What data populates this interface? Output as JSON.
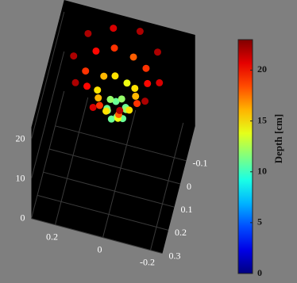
{
  "chart_data": {
    "type": "scatter3d",
    "x": [
      0.07,
      0.062,
      0.042,
      0.018,
      -0.002,
      -0.01,
      -0.002,
      0.018,
      0.042,
      0.062,
      0.11,
      0.095,
      0.055,
      0.005,
      -0.035,
      -0.05,
      -0.035,
      0.005,
      0.055,
      0.095,
      0.16,
      0.135,
      0.07,
      -0.01,
      -0.075,
      -0.1,
      -0.075,
      -0.01,
      0.07,
      0.135,
      0.21,
      0.176,
      0.086,
      -0.026,
      -0.116,
      -0.15,
      -0.116,
      -0.026,
      0.086,
      0.176
    ],
    "y": [
      -0.05,
      -0.026,
      -0.012,
      -0.012,
      -0.026,
      -0.05,
      -0.074,
      -0.088,
      -0.088,
      -0.074,
      -0.05,
      -0.003,
      0.026,
      0.026,
      -0.003,
      -0.05,
      -0.097,
      -0.126,
      -0.126,
      -0.097,
      -0.05,
      0.026,
      0.074,
      0.074,
      0.026,
      -0.05,
      -0.126,
      -0.174,
      -0.174,
      -0.126,
      -0.05,
      0.056,
      0.121,
      0.121,
      0.056,
      -0.05,
      -0.156,
      -0.221,
      -0.221,
      -0.156
    ],
    "z": [
      11,
      12,
      11,
      12,
      11,
      12,
      11,
      12,
      11,
      12,
      15,
      16,
      15,
      14,
      15,
      16,
      15,
      14,
      15,
      16,
      19,
      20,
      19,
      18,
      19,
      20,
      19,
      18,
      19,
      20,
      22,
      22,
      21,
      22,
      22,
      21,
      22,
      22,
      21,
      22
    ],
    "xlim": [
      -0.25,
      0.3
    ],
    "ylim": [
      -0.25,
      0.3
    ],
    "zlim": [
      0,
      23
    ],
    "xticks": [
      0.2,
      0,
      -0.2
    ],
    "yticks": [
      -0.1,
      0,
      0.1,
      0.2,
      0.3
    ],
    "zticks": [
      0,
      10,
      20
    ],
    "colorbar": {
      "label": "Depth [cm]",
      "clim": [
        0,
        23
      ],
      "ticks": [
        0,
        5,
        10,
        15,
        20
      ],
      "colormap": "jet"
    },
    "grid": true
  }
}
